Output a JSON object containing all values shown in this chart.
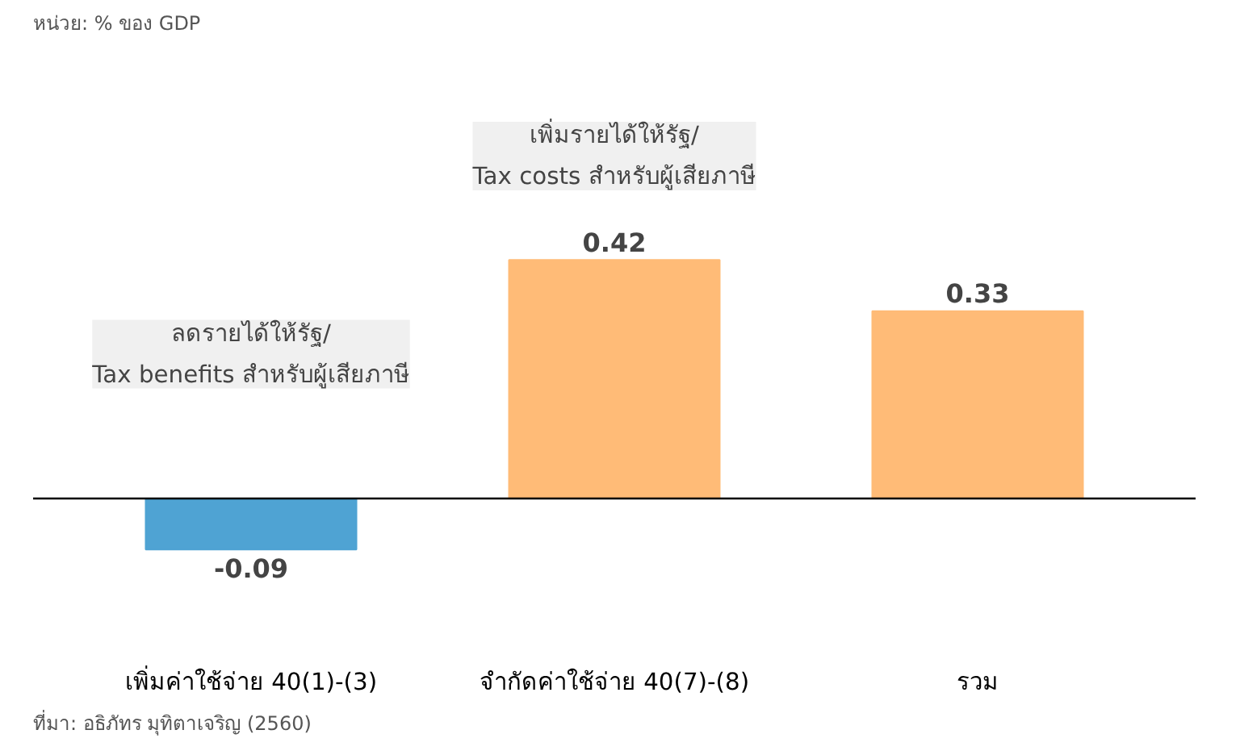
{
  "chart_data": {
    "type": "bar",
    "subtitle": "หน่วย: % ของ GDP",
    "categories": [
      "เพิ่มค่าใช้จ่าย 40(1)-(3)",
      "จำกัดค่าใช้จ่าย 40(7)-(8)",
      "รวม"
    ],
    "values": [
      -0.09,
      0.42,
      0.33
    ],
    "colors": [
      "#4fa3d3",
      "#ffbb77",
      "#ffbb77"
    ],
    "data_labels": true,
    "grid": false,
    "annotations": [
      "ลดรายได้ให้รัฐ/\nTax benefits สำหรับผู้เสียภาษี",
      "เพิ่มรายได้ให้รัฐ/\nTax costs สำหรับผู้เสียภาษี",
      "ที่มา: อธิภัทร มุทิตาเจริญ (2560)"
    ]
  }
}
